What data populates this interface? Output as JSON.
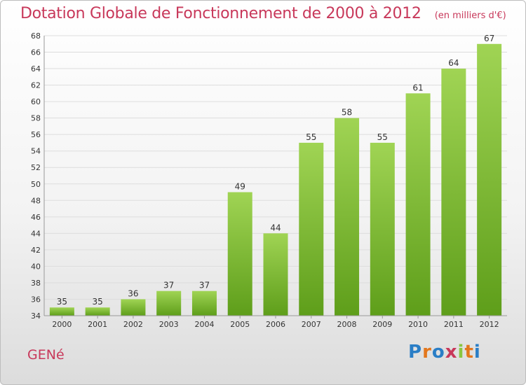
{
  "header": {
    "title": "Dotation Globale de Fonctionnement de 2000 à 2012",
    "unit": "(en milliers d'€)"
  },
  "footer": {
    "commune": "GENé",
    "logo_text": "Proxiti"
  },
  "colors": {
    "title": "#c8385a",
    "bar_light": "#a0d454",
    "bar_dark": "#5e9e1a",
    "grid": "#dddddd",
    "axis": "#999999",
    "logo": [
      "#2a7ec6",
      "#e3771d",
      "#2a7ec6",
      "#c8385a",
      "#8ac640",
      "#e3771d",
      "#2a7ec6"
    ]
  },
  "chart_data": {
    "type": "bar",
    "title": "Dotation Globale de Fonctionnement de 2000 à 2012",
    "subtitle": "(en milliers d'€)",
    "categories": [
      "2000",
      "2001",
      "2002",
      "2003",
      "2004",
      "2005",
      "2006",
      "2007",
      "2008",
      "2009",
      "2010",
      "2011",
      "2012"
    ],
    "values": [
      35,
      35,
      36,
      37,
      37,
      49,
      44,
      55,
      58,
      55,
      61,
      64,
      67
    ],
    "ylim": [
      34,
      68
    ],
    "yticks": [
      34,
      36,
      38,
      40,
      42,
      44,
      46,
      48,
      50,
      52,
      54,
      56,
      58,
      60,
      62,
      64,
      66,
      68
    ],
    "grid": true,
    "data_labels": true
  }
}
